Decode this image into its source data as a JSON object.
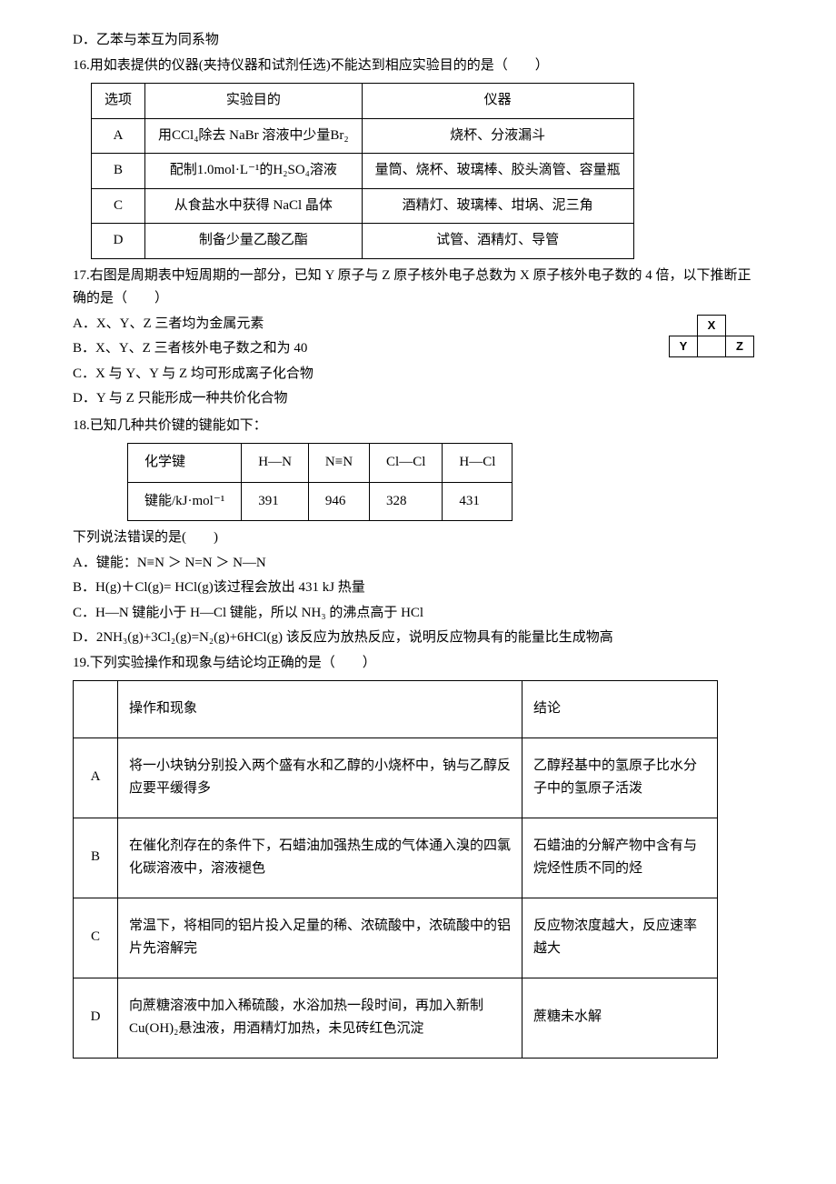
{
  "q15d": "D．乙苯与苯互为同系物",
  "q16": {
    "stem": "16.用如表提供的仪器(夹持仪器和试剂任选)不能达到相应实验目的的是（　　）",
    "head": [
      "选项",
      "实验目的",
      "仪器"
    ],
    "rows": [
      [
        "A",
        "用CCl₄除去 NaBr 溶液中少量Br₂",
        "烧杯、分液漏斗"
      ],
      [
        "B",
        "配制1.0mol·L⁻¹的H₂SO₄溶液",
        "量筒、烧杯、玻璃棒、胶头滴管、容量瓶"
      ],
      [
        "C",
        "从食盐水中获得 NaCl 晶体",
        "酒精灯、玻璃棒、坩埚、泥三角"
      ],
      [
        "D",
        "制备少量乙酸乙酯",
        "试管、酒精灯、导管"
      ]
    ]
  },
  "q17": {
    "stem1": "17.右图是周期表中短周期的一部分，已知 Y 原子与 Z 原子核外电子总数为 X 原子核外电子数的 4 倍，以下推断正确的是（　　）",
    "A": "A．X、Y、Z 三者均为金属元素",
    "B": "B．X、Y、Z 三者核外电子数之和为 40",
    "C": "C．X 与 Y、Y 与 Z 均可形成离子化合物",
    "D": "D．Y 与 Z 只能形成一种共价化合物",
    "cells": {
      "x": "X",
      "y": "Y",
      "z": "Z"
    }
  },
  "q18": {
    "stem": "18.已知几种共价键的键能如下：",
    "head": [
      "化学键",
      "H—N",
      "N≡N",
      "Cl—Cl",
      "H—Cl"
    ],
    "row_label": "键能/kJ·mol⁻¹",
    "vals": [
      "391",
      "946",
      "328",
      "431"
    ],
    "sub": "下列说法错误的是(　　)",
    "A": "A．键能：N≡N ＞ N=N ＞ N—N",
    "B": "B．H(g)＋Cl(g)= HCl(g)该过程会放出 431 kJ 热量",
    "C": "C．H—N 键能小于 H—Cl 键能，所以 NH₃ 的沸点高于 HCl",
    "D": "D．2NH₃(g)+3Cl₂(g)=N₂(g)+6HCl(g) 该反应为放热反应，说明反应物具有的能量比生成物高"
  },
  "q19": {
    "stem": "19.下列实验操作和现象与结论均正确的是（　　）",
    "head": [
      "",
      "操作和现象",
      "结论"
    ],
    "rows": [
      [
        "A",
        "将一小块钠分别投入两个盛有水和乙醇的小烧杯中，钠与乙醇反应要平缓得多",
        "乙醇羟基中的氢原子比水分子中的氢原子活泼"
      ],
      [
        "B",
        "在催化剂存在的条件下，石蜡油加强热生成的气体通入溴的四氯化碳溶液中，溶液褪色",
        "石蜡油的分解产物中含有与烷烃性质不同的烃"
      ],
      [
        "C",
        "常温下，将相同的铝片投入足量的稀、浓硫酸中，浓硫酸中的铝片先溶解完",
        "反应物浓度越大，反应速率越大"
      ],
      [
        "D",
        "向蔗糖溶液中加入稀硫酸，水浴加热一段时间，再加入新制Cu(OH)₂悬浊液，用酒精灯加热，未见砖红色沉淀",
        "蔗糖未水解"
      ]
    ]
  }
}
